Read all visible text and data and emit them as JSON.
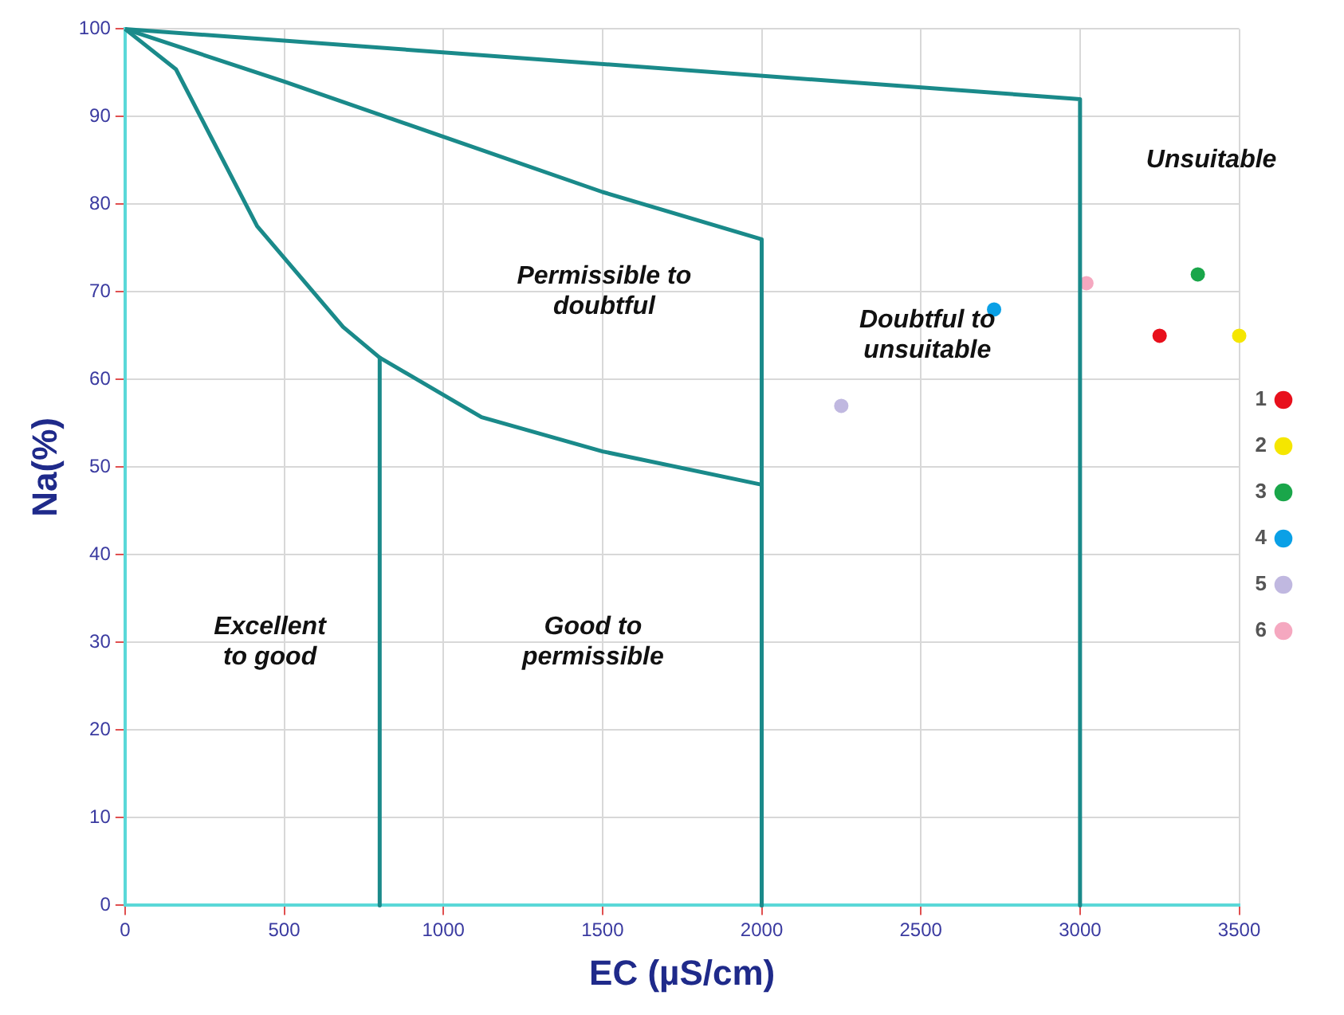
{
  "chart_data": {
    "type": "scatter",
    "xlabel": "EC (µS/cm)",
    "ylabel": "Na(%)",
    "xlim": [
      0,
      3500
    ],
    "xticks": [
      0,
      500,
      1000,
      1500,
      2000,
      2500,
      3000,
      3500
    ],
    "ylim": [
      0,
      100
    ],
    "yticks": [
      0,
      10,
      20,
      30,
      40,
      50,
      60,
      70,
      80,
      90,
      100
    ],
    "grid": true,
    "legend": "right",
    "series": [
      {
        "type": "line",
        "color": "#1a8a8a",
        "marker": "none",
        "x": [
          0,
          3000,
          3000
        ],
        "values": [
          100,
          92,
          0
        ]
      },
      {
        "type": "line",
        "color": "#1a8a8a",
        "marker": "none",
        "x": [
          0,
          500,
          1000,
          1500,
          2000,
          2000
        ],
        "values": [
          100,
          94,
          87.7,
          81.4,
          76,
          0
        ]
      },
      {
        "type": "line",
        "color": "#1a8a8a",
        "marker": "none",
        "x": [
          0,
          160,
          415,
          685,
          800,
          1120,
          1500,
          2000,
          2000
        ],
        "values": [
          100,
          95.4,
          77.5,
          66,
          62.5,
          55.7,
          51.8,
          48,
          0
        ]
      },
      {
        "type": "line",
        "color": "#1a8a8a",
        "marker": "none",
        "x": [
          800,
          800
        ],
        "values": [
          62.5,
          0
        ]
      },
      {
        "name": "1",
        "color": "#e8101c",
        "marker": "circle",
        "x": [
          3250
        ],
        "values": [
          65
        ]
      },
      {
        "name": "2",
        "color": "#f5e600",
        "marker": "circle",
        "x": [
          3500
        ],
        "values": [
          65
        ]
      },
      {
        "name": "3",
        "color": "#1aa64a",
        "marker": "circle",
        "x": [
          3370
        ],
        "values": [
          72
        ]
      },
      {
        "name": "4",
        "color": "#0aa0e6",
        "marker": "circle",
        "x": [
          2730
        ],
        "values": [
          68
        ]
      },
      {
        "name": "5",
        "color": "#c0b8e0",
        "marker": "circle",
        "x": [
          2250
        ],
        "values": [
          57
        ]
      },
      {
        "name": "6",
        "color": "#f5a8c0",
        "marker": "circle",
        "x": [
          3020
        ],
        "values": [
          71
        ]
      }
    ],
    "annotations": [
      "Excellent\nto good",
      "Good to\npermissible",
      "Permissible to\ndoubtful",
      "Doubtful to\nunsuitable",
      "Unsuitable"
    ]
  }
}
